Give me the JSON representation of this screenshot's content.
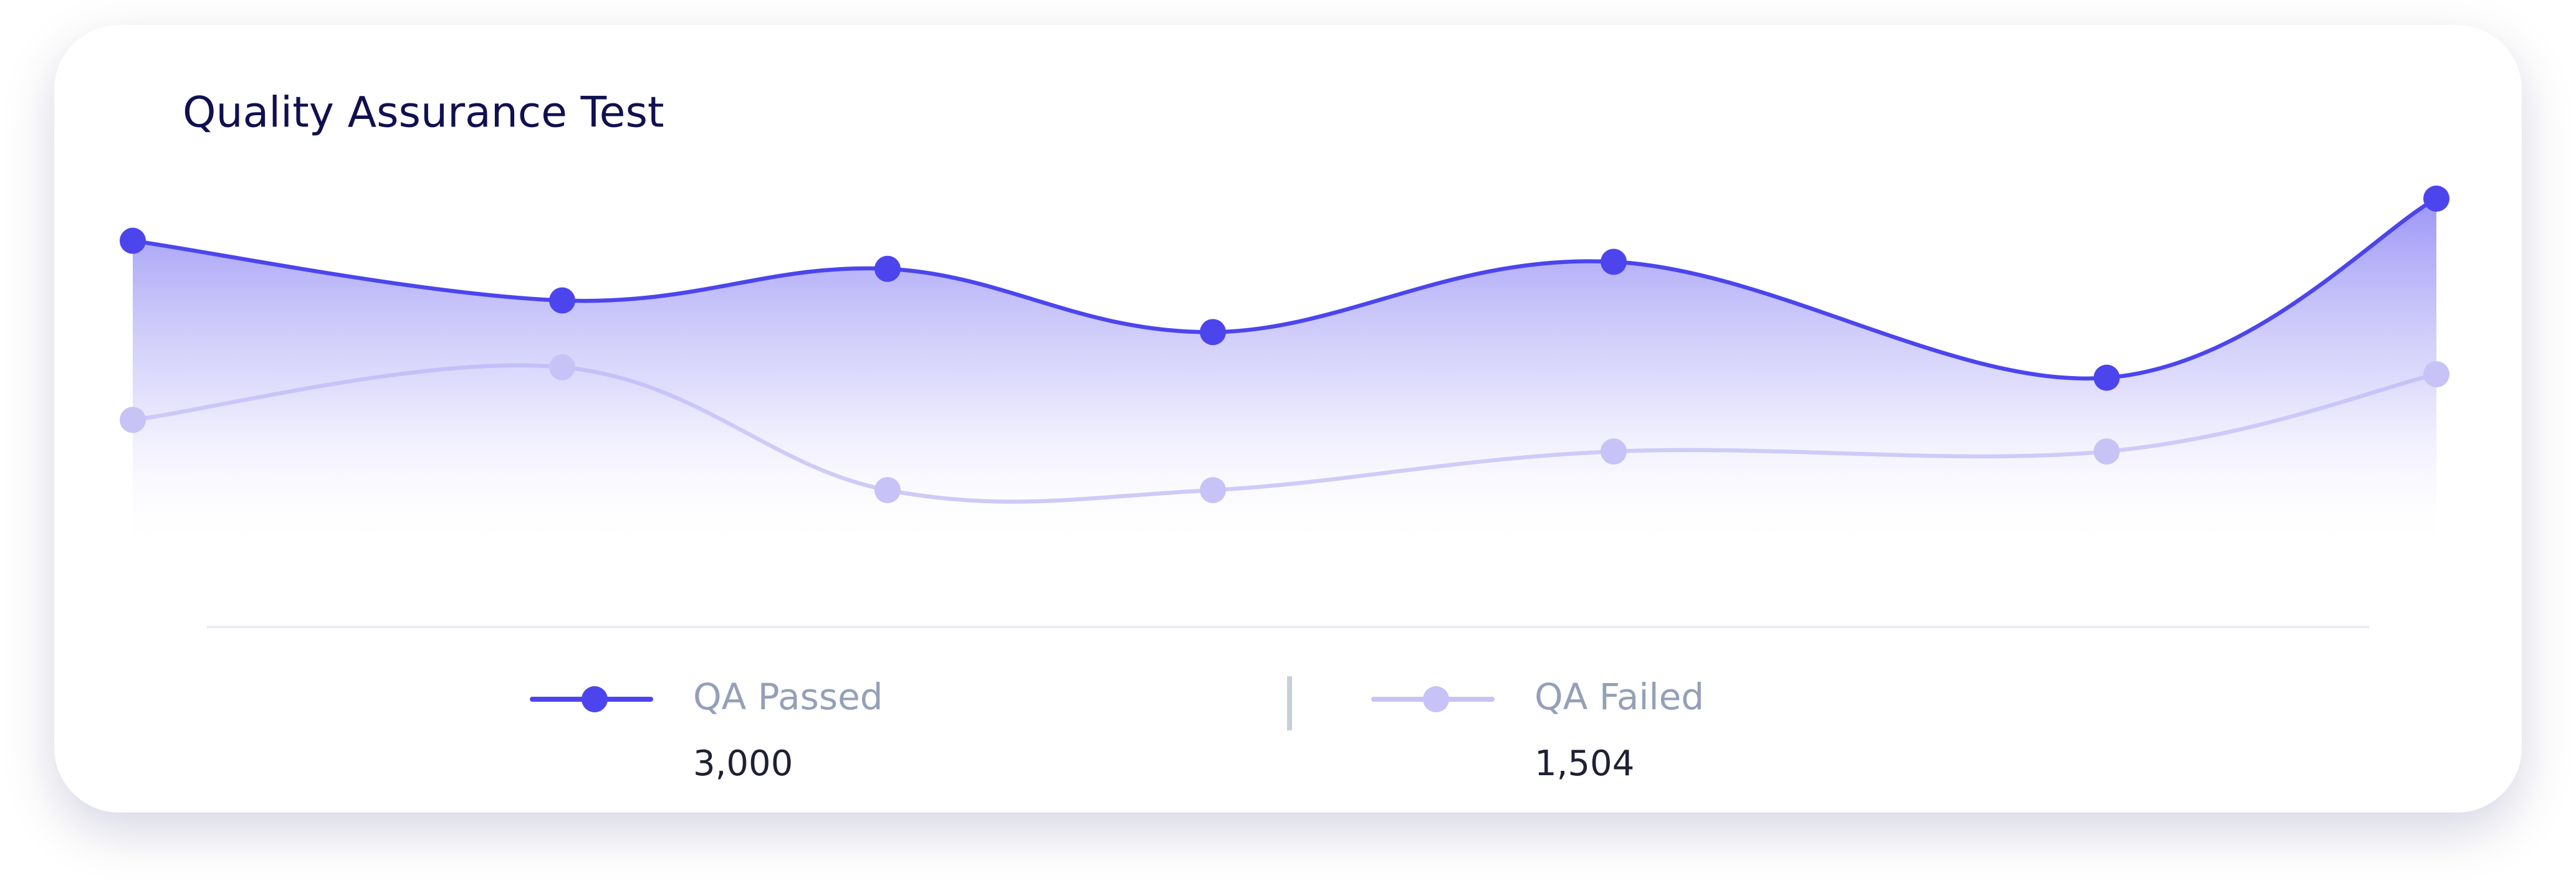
{
  "chart_data": {
    "type": "line",
    "title": "Quality Assurance Test",
    "categories": [
      null,
      null,
      null,
      null,
      null,
      null,
      null
    ],
    "series": [
      {
        "name": "QA Passed",
        "color": "#4c45ee",
        "values": [
          88,
          71,
          80,
          62,
          82,
          49,
          100
        ],
        "total": {
          "value": 3000,
          "label": "3,000"
        }
      },
      {
        "name": "QA Failed",
        "color": "#c7c3f7",
        "values": [
          37,
          52,
          17,
          17,
          28,
          28,
          50
        ],
        "total": {
          "value": 1504,
          "label": "1,504"
        }
      }
    ],
    "fill": true
  }
}
